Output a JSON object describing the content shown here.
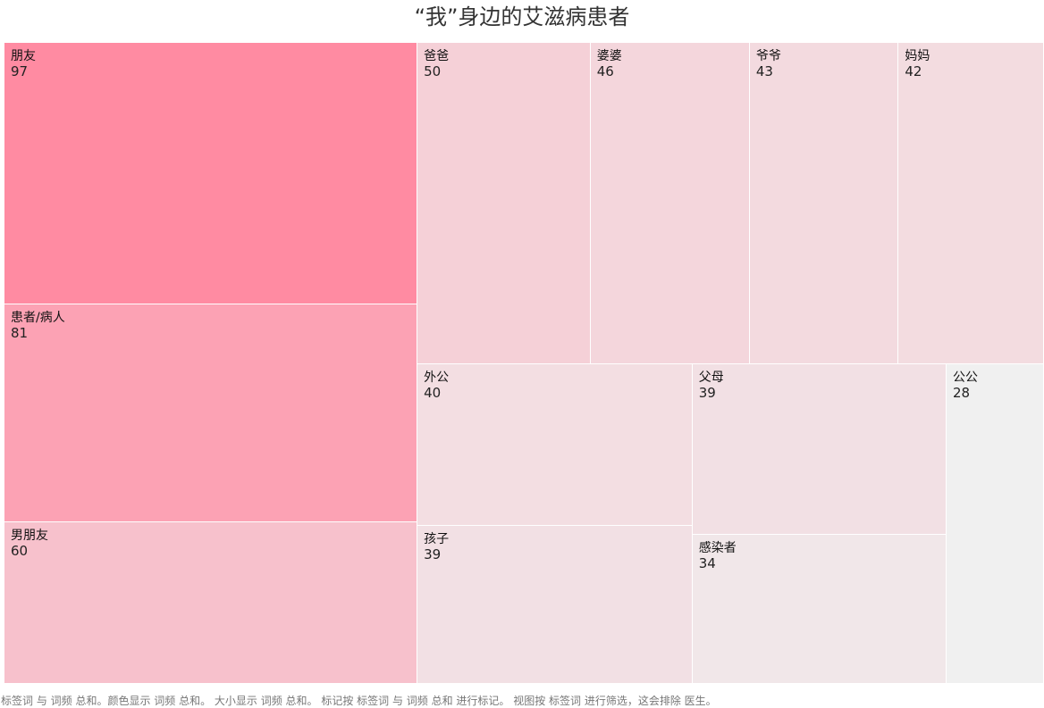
{
  "chart_data": {
    "type": "treemap",
    "title": "“我”身边的艾滋病患者",
    "color_low": "#f0f0f0",
    "color_high": "#ff8ba2",
    "items": [
      {
        "label": "朋友",
        "value": 97
      },
      {
        "label": "患者/病人",
        "value": 81
      },
      {
        "label": "男朋友",
        "value": 60
      },
      {
        "label": "爸爸",
        "value": 50
      },
      {
        "label": "婆婆",
        "value": 46
      },
      {
        "label": "爷爷",
        "value": 43
      },
      {
        "label": "妈妈",
        "value": 42
      },
      {
        "label": "外公",
        "value": 40
      },
      {
        "label": "孩子",
        "value": 39
      },
      {
        "label": "父母",
        "value": 39
      },
      {
        "label": "感染者",
        "value": 34
      },
      {
        "label": "公公",
        "value": 28
      }
    ]
  },
  "footnote": "标签词 与 词频 总和。颜色显示 词频 总和。 大小显示 词频 总和。 标记按 标签词 与 词频 总和 进行标记。 视图按 标签词 进行筛选，这会排除 医生。"
}
